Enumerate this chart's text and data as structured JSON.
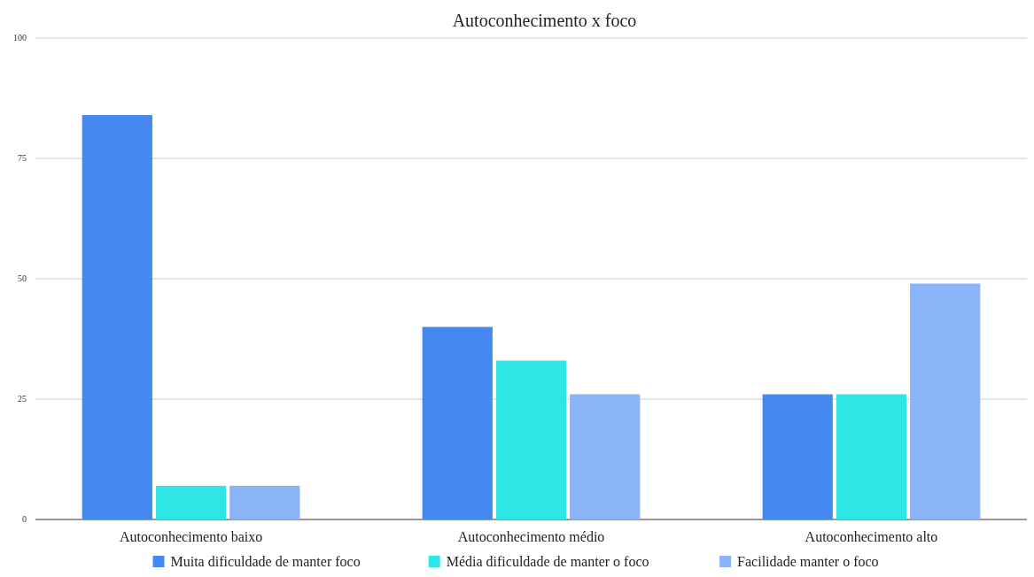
{
  "chart_data": {
    "type": "bar",
    "title": "Autoconhecimento x foco",
    "categories": [
      "Autoconhecimento baixo",
      "Autoconhecimento médio",
      "Autoconhecimento alto"
    ],
    "series": [
      {
        "name": "Muita dificuldade de manter foco",
        "color": "#4589f0",
        "values": [
          84,
          40,
          26
        ]
      },
      {
        "name": "Média dificuldade de manter o foco",
        "color": "#2ee6e6",
        "values": [
          7,
          33,
          26
        ]
      },
      {
        "name": "Facilidade manter o foco",
        "color": "#8ab4f8",
        "values": [
          7,
          26,
          49
        ]
      }
    ],
    "ylim": [
      0,
      100
    ],
    "yticks": [
      0,
      25,
      50,
      75,
      100
    ],
    "grid": "y",
    "legend": "bottom"
  }
}
